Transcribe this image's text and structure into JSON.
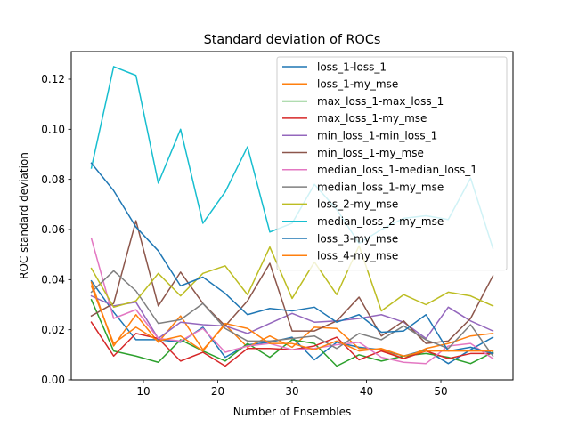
{
  "chart_data": {
    "type": "line",
    "title": "Standard deviation of ROCs",
    "xlabel": "Number of Ensembles",
    "ylabel": "ROC standard deviation",
    "xlim": [
      0.3,
      59.7
    ],
    "ylim": [
      0.0,
      0.131
    ],
    "xticks": [
      10,
      20,
      30,
      40,
      50
    ],
    "yticks": [
      0.0,
      0.02,
      0.04,
      0.06,
      0.08,
      0.1,
      0.12
    ],
    "ytick_labels": [
      "0.00",
      "0.02",
      "0.04",
      "0.06",
      "0.08",
      "0.10",
      "0.12"
    ],
    "grid": false,
    "legend_position": "upper-right",
    "x": [
      3,
      6,
      9,
      12,
      15,
      18,
      21,
      24,
      27,
      30,
      33,
      36,
      39,
      42,
      45,
      48,
      51,
      54,
      57
    ],
    "series": [
      {
        "name": "loss_1-loss_1",
        "color": "#1f77b4",
        "values": [
          0.0395,
          0.027,
          0.016,
          0.016,
          0.015,
          0.021,
          0.009,
          0.014,
          0.015,
          0.017,
          0.008,
          0.015,
          0.013,
          0.012,
          0.0095,
          0.012,
          0.0065,
          0.012,
          0.017
        ]
      },
      {
        "name": "loss_1-my_mse",
        "color": "#ff7f0e",
        "values": [
          0.039,
          0.0135,
          0.026,
          0.015,
          0.0255,
          0.012,
          0.022,
          0.013,
          0.0175,
          0.013,
          0.021,
          0.0205,
          0.0125,
          0.012,
          0.0085,
          0.0125,
          0.0145,
          0.0175,
          0.0185
        ]
      },
      {
        "name": "max_loss_1-max_loss_1",
        "color": "#2ca02c",
        "values": [
          0.032,
          0.0115,
          0.0095,
          0.007,
          0.016,
          0.0115,
          0.0075,
          0.0145,
          0.009,
          0.016,
          0.0145,
          0.0055,
          0.01,
          0.0075,
          0.0095,
          0.0105,
          0.009,
          0.0065,
          0.011
        ]
      },
      {
        "name": "max_loss_1-my_mse",
        "color": "#d62728",
        "values": [
          0.023,
          0.0095,
          0.0185,
          0.0165,
          0.0075,
          0.011,
          0.0055,
          0.0125,
          0.0125,
          0.012,
          0.0135,
          0.017,
          0.008,
          0.0115,
          0.0085,
          0.0115,
          0.0085,
          0.0105,
          0.0105
        ]
      },
      {
        "name": "min_loss_1-min_loss_1",
        "color": "#9467bd",
        "values": [
          0.0335,
          0.0295,
          0.031,
          0.0165,
          0.023,
          0.022,
          0.0215,
          0.0185,
          0.0225,
          0.0265,
          0.023,
          0.0235,
          0.0245,
          0.026,
          0.023,
          0.0165,
          0.029,
          0.0235,
          0.0195
        ]
      },
      {
        "name": "min_loss_1-my_mse",
        "color": "#8c564b",
        "values": [
          0.0255,
          0.0305,
          0.0635,
          0.0295,
          0.043,
          0.0305,
          0.0215,
          0.0315,
          0.0465,
          0.0195,
          0.0195,
          0.0235,
          0.033,
          0.0175,
          0.0235,
          0.0145,
          0.0155,
          0.0245,
          0.0415
        ]
      },
      {
        "name": "median_loss_1-median_loss_1",
        "color": "#e377c2",
        "values": [
          0.0565,
          0.0245,
          0.028,
          0.0165,
          0.0155,
          0.0205,
          0.011,
          0.0135,
          0.0145,
          0.012,
          0.0125,
          0.014,
          0.015,
          0.009,
          0.007,
          0.0065,
          0.0135,
          0.0145,
          0.0085
        ]
      },
      {
        "name": "median_loss_1-my_mse",
        "color": "#7f7f7f",
        "values": [
          0.035,
          0.0435,
          0.0355,
          0.0225,
          0.024,
          0.0305,
          0.0205,
          0.0155,
          0.0155,
          0.0165,
          0.0175,
          0.0125,
          0.0185,
          0.016,
          0.0215,
          0.016,
          0.0125,
          0.022,
          0.0095
        ]
      },
      {
        "name": "loss_2-my_mse",
        "color": "#bcbd22",
        "values": [
          0.0445,
          0.029,
          0.0315,
          0.0425,
          0.0335,
          0.0425,
          0.0455,
          0.034,
          0.053,
          0.0325,
          0.047,
          0.034,
          0.0535,
          0.0275,
          0.034,
          0.03,
          0.035,
          0.0335,
          0.0295
        ]
      },
      {
        "name": "median_loss_2-my_mse",
        "color": "#17becf",
        "values": [
          0.0845,
          0.125,
          0.1215,
          0.0785,
          0.1,
          0.0625,
          0.075,
          0.093,
          0.059,
          0.0625,
          0.078,
          0.068,
          0.0545,
          0.06,
          0.0645,
          0.0655,
          0.064,
          0.0805,
          0.0525
        ]
      },
      {
        "name": "loss_3-my_mse",
        "color": "#1f77b4",
        "values": [
          0.0865,
          0.0755,
          0.061,
          0.0515,
          0.0375,
          0.041,
          0.0345,
          0.026,
          0.0285,
          0.0275,
          0.029,
          0.023,
          0.026,
          0.019,
          0.0195,
          0.026,
          0.0115,
          0.013,
          0.0105
        ]
      },
      {
        "name": "loss_4-my_mse",
        "color": "#ff7f0e",
        "values": [
          0.0375,
          0.0145,
          0.021,
          0.0155,
          0.0175,
          0.0115,
          0.0225,
          0.0205,
          0.0145,
          0.0145,
          0.012,
          0.0155,
          0.0115,
          0.0125,
          0.0095,
          0.0115,
          0.0115,
          0.0115,
          0.0115
        ]
      }
    ]
  }
}
